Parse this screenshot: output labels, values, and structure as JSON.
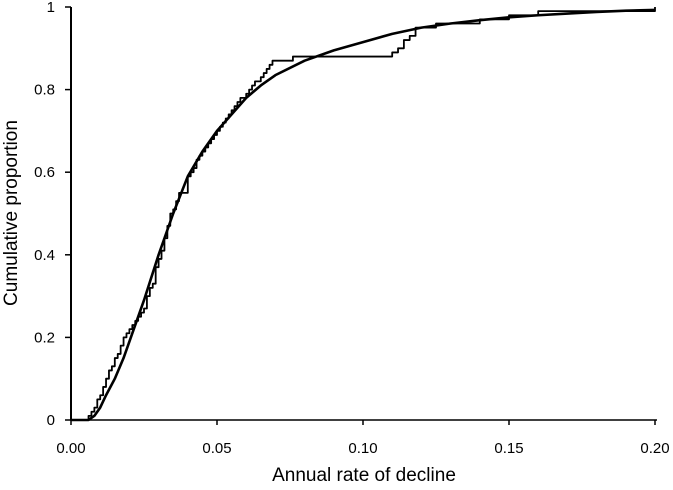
{
  "chart_data": {
    "type": "line",
    "title": "",
    "xlabel": "Annual rate of decline",
    "ylabel": "Cumulative proportion",
    "xlim": [
      0,
      0.2
    ],
    "ylim": [
      0,
      1
    ],
    "x_ticks": [
      {
        "value": 0.0,
        "label": "0.00"
      },
      {
        "value": 0.05,
        "label": "0.05"
      },
      {
        "value": 0.1,
        "label": "0.10"
      },
      {
        "value": 0.15,
        "label": "0.15"
      },
      {
        "value": 0.2,
        "label": "0.20"
      }
    ],
    "y_ticks": [
      {
        "value": 0,
        "label": "0"
      },
      {
        "value": 0.2,
        "label": "0.2"
      },
      {
        "value": 0.4,
        "label": "0.4"
      },
      {
        "value": 0.6,
        "label": "0.6"
      },
      {
        "value": 0.8,
        "label": "0.8"
      },
      {
        "value": 1,
        "label": "1"
      }
    ],
    "grid": false,
    "legend": "none",
    "line_color": "#000000",
    "series": [
      {
        "style": "step",
        "x": [
          0.0,
          0.006,
          0.007,
          0.008,
          0.009,
          0.01,
          0.011,
          0.012,
          0.013,
          0.014,
          0.015,
          0.016,
          0.017,
          0.018,
          0.019,
          0.02,
          0.021,
          0.022,
          0.023,
          0.024,
          0.025,
          0.026,
          0.027,
          0.028,
          0.029,
          0.03,
          0.031,
          0.032,
          0.033,
          0.034,
          0.035,
          0.036,
          0.037,
          0.038,
          0.039,
          0.04,
          0.041,
          0.042,
          0.043,
          0.044,
          0.045,
          0.046,
          0.047,
          0.048,
          0.049,
          0.05,
          0.051,
          0.052,
          0.053,
          0.054,
          0.055,
          0.056,
          0.057,
          0.058,
          0.059,
          0.06,
          0.061,
          0.062,
          0.063,
          0.064,
          0.065,
          0.066,
          0.067,
          0.068,
          0.069,
          0.07,
          0.072,
          0.074,
          0.076,
          0.078,
          0.08,
          0.082,
          0.085,
          0.09,
          0.11,
          0.112,
          0.114,
          0.116,
          0.118,
          0.12,
          0.125,
          0.13,
          0.14,
          0.15,
          0.16,
          0.175,
          0.2
        ],
        "values": [
          0.0,
          0.01,
          0.02,
          0.03,
          0.05,
          0.06,
          0.08,
          0.1,
          0.12,
          0.13,
          0.15,
          0.16,
          0.18,
          0.2,
          0.21,
          0.22,
          0.23,
          0.24,
          0.25,
          0.26,
          0.27,
          0.3,
          0.32,
          0.33,
          0.37,
          0.39,
          0.41,
          0.44,
          0.47,
          0.5,
          0.51,
          0.53,
          0.55,
          0.55,
          0.55,
          0.59,
          0.6,
          0.61,
          0.63,
          0.64,
          0.65,
          0.66,
          0.67,
          0.68,
          0.69,
          0.7,
          0.71,
          0.72,
          0.73,
          0.74,
          0.75,
          0.76,
          0.77,
          0.78,
          0.78,
          0.79,
          0.8,
          0.81,
          0.82,
          0.82,
          0.83,
          0.84,
          0.85,
          0.86,
          0.87,
          0.87,
          0.87,
          0.87,
          0.88,
          0.88,
          0.88,
          0.88,
          0.88,
          0.88,
          0.89,
          0.9,
          0.92,
          0.93,
          0.95,
          0.95,
          0.96,
          0.96,
          0.97,
          0.98,
          0.99,
          0.99,
          1.0
        ]
      },
      {
        "style": "smooth",
        "x": [
          0.0,
          0.006,
          0.008,
          0.01,
          0.012,
          0.015,
          0.018,
          0.02,
          0.025,
          0.03,
          0.035,
          0.04,
          0.045,
          0.05,
          0.055,
          0.06,
          0.065,
          0.07,
          0.08,
          0.09,
          0.1,
          0.11,
          0.12,
          0.13,
          0.14,
          0.15,
          0.16,
          0.17,
          0.18,
          0.19,
          0.2
        ],
        "values": [
          0.0,
          0.0,
          0.01,
          0.03,
          0.06,
          0.1,
          0.15,
          0.19,
          0.29,
          0.4,
          0.5,
          0.59,
          0.65,
          0.7,
          0.74,
          0.78,
          0.81,
          0.835,
          0.87,
          0.895,
          0.915,
          0.935,
          0.95,
          0.96,
          0.968,
          0.975,
          0.98,
          0.984,
          0.988,
          0.991,
          0.993
        ]
      }
    ]
  }
}
